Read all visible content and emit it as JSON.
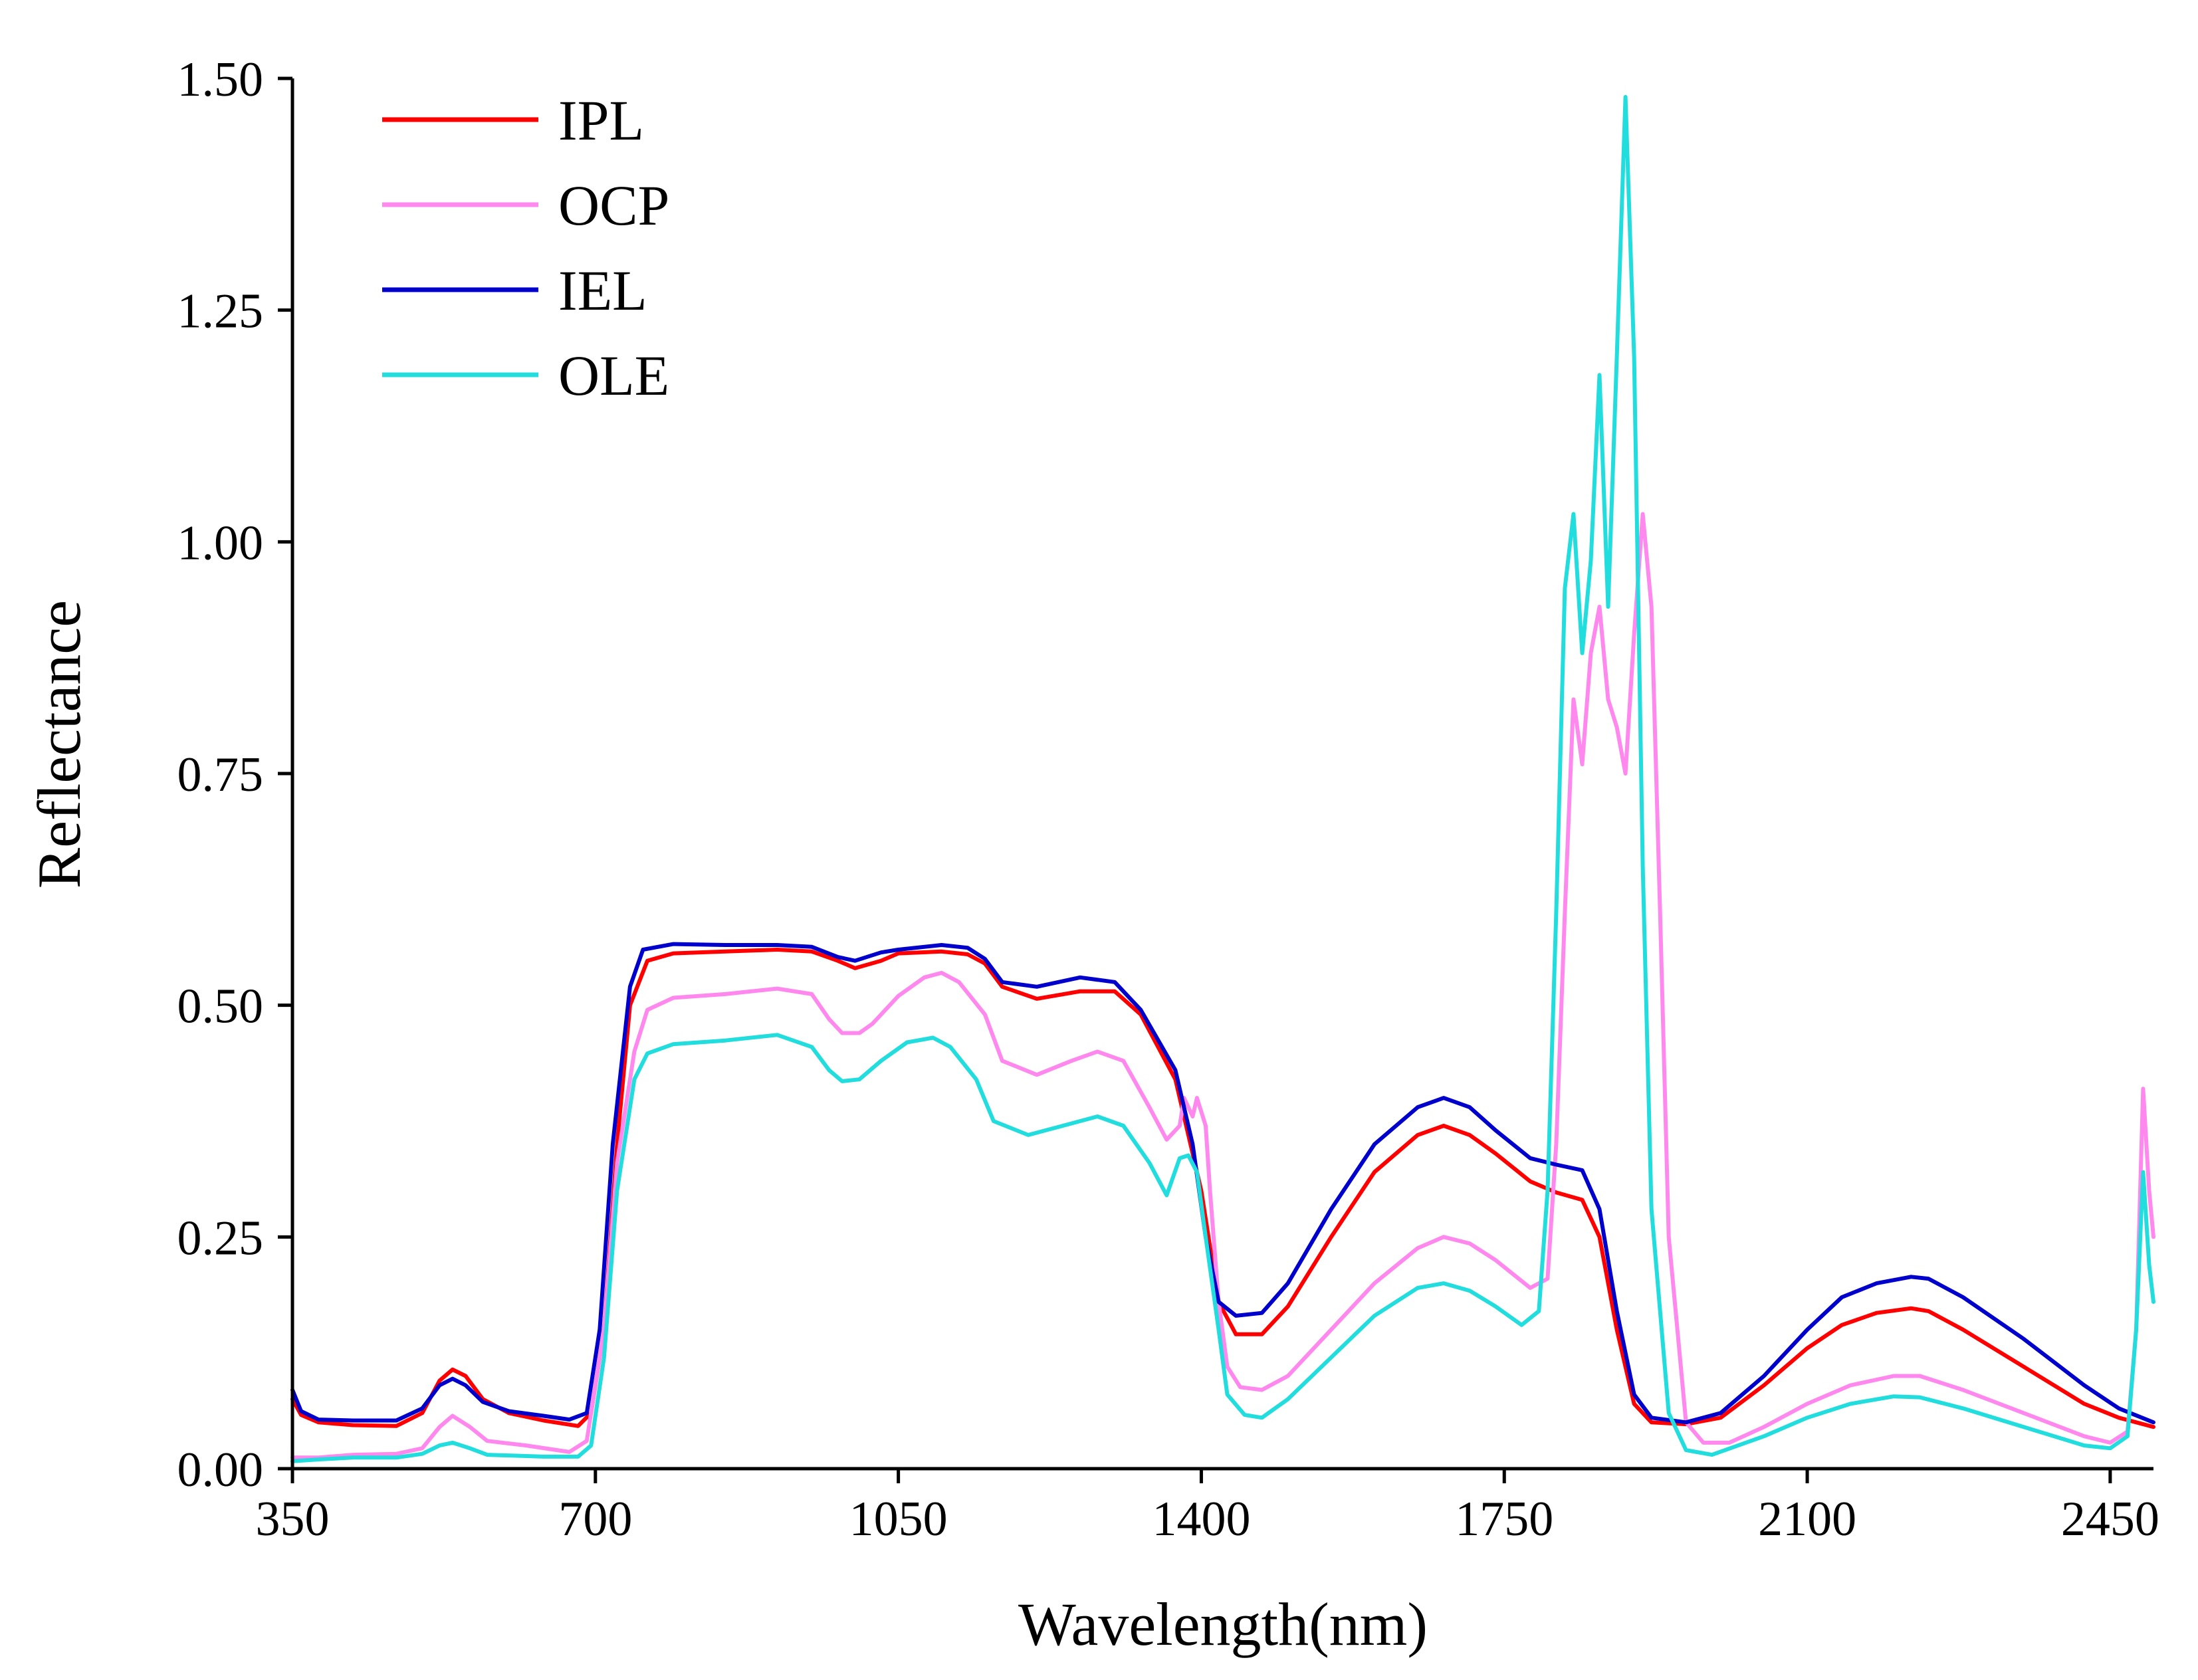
{
  "chart_data": {
    "type": "line",
    "title": "",
    "xlabel": "Wavelength(nm)",
    "ylabel": "Reflectance",
    "xlim": [
      350,
      2500
    ],
    "ylim": [
      0,
      1.5
    ],
    "xticks": [
      350,
      700,
      1050,
      1400,
      1750,
      2100,
      2450
    ],
    "xtick_labels": [
      "350",
      "700",
      "1050",
      "1400",
      "1750",
      "2100",
      "2450"
    ],
    "yticks": [
      0,
      0.25,
      0.5,
      0.75,
      1.0,
      1.25,
      1.5
    ],
    "ytick_labels": [
      "0.00",
      "0.25",
      "0.50",
      "0.75",
      "1.00",
      "1.25",
      "1.50"
    ],
    "grid": false,
    "legend_position": "top-left",
    "series": [
      {
        "name": "IPL",
        "color": "#ff0000",
        "points": [
          [
            350,
            0.075
          ],
          [
            360,
            0.058
          ],
          [
            380,
            0.05
          ],
          [
            420,
            0.047
          ],
          [
            470,
            0.046
          ],
          [
            500,
            0.06
          ],
          [
            520,
            0.095
          ],
          [
            535,
            0.107
          ],
          [
            550,
            0.1
          ],
          [
            570,
            0.075
          ],
          [
            600,
            0.06
          ],
          [
            640,
            0.052
          ],
          [
            680,
            0.046
          ],
          [
            695,
            0.06
          ],
          [
            710,
            0.15
          ],
          [
            725,
            0.35
          ],
          [
            740,
            0.5
          ],
          [
            760,
            0.548
          ],
          [
            790,
            0.556
          ],
          [
            850,
            0.558
          ],
          [
            910,
            0.56
          ],
          [
            950,
            0.558
          ],
          [
            980,
            0.548
          ],
          [
            1000,
            0.54
          ],
          [
            1030,
            0.548
          ],
          [
            1050,
            0.556
          ],
          [
            1100,
            0.558
          ],
          [
            1130,
            0.555
          ],
          [
            1150,
            0.545
          ],
          [
            1170,
            0.52
          ],
          [
            1210,
            0.507
          ],
          [
            1260,
            0.515
          ],
          [
            1300,
            0.515
          ],
          [
            1330,
            0.49
          ],
          [
            1370,
            0.42
          ],
          [
            1400,
            0.3
          ],
          [
            1420,
            0.18
          ],
          [
            1440,
            0.145
          ],
          [
            1470,
            0.145
          ],
          [
            1500,
            0.175
          ],
          [
            1550,
            0.25
          ],
          [
            1600,
            0.32
          ],
          [
            1650,
            0.36
          ],
          [
            1680,
            0.37
          ],
          [
            1710,
            0.36
          ],
          [
            1740,
            0.34
          ],
          [
            1780,
            0.31
          ],
          [
            1810,
            0.298
          ],
          [
            1840,
            0.29
          ],
          [
            1860,
            0.25
          ],
          [
            1880,
            0.15
          ],
          [
            1900,
            0.07
          ],
          [
            1920,
            0.05
          ],
          [
            1960,
            0.048
          ],
          [
            2000,
            0.055
          ],
          [
            2050,
            0.09
          ],
          [
            2100,
            0.13
          ],
          [
            2140,
            0.155
          ],
          [
            2180,
            0.168
          ],
          [
            2220,
            0.173
          ],
          [
            2240,
            0.17
          ],
          [
            2280,
            0.15
          ],
          [
            2350,
            0.11
          ],
          [
            2420,
            0.07
          ],
          [
            2460,
            0.055
          ],
          [
            2500,
            0.045
          ]
        ]
      },
      {
        "name": "OCP",
        "color": "#ff88ee",
        "points": [
          [
            350,
            0.012
          ],
          [
            380,
            0.012
          ],
          [
            420,
            0.015
          ],
          [
            470,
            0.016
          ],
          [
            500,
            0.022
          ],
          [
            520,
            0.045
          ],
          [
            535,
            0.057
          ],
          [
            555,
            0.045
          ],
          [
            575,
            0.03
          ],
          [
            620,
            0.025
          ],
          [
            670,
            0.018
          ],
          [
            690,
            0.03
          ],
          [
            710,
            0.15
          ],
          [
            725,
            0.33
          ],
          [
            745,
            0.45
          ],
          [
            760,
            0.495
          ],
          [
            790,
            0.508
          ],
          [
            850,
            0.512
          ],
          [
            910,
            0.518
          ],
          [
            950,
            0.512
          ],
          [
            970,
            0.485
          ],
          [
            985,
            0.47
          ],
          [
            1005,
            0.47
          ],
          [
            1020,
            0.48
          ],
          [
            1050,
            0.51
          ],
          [
            1080,
            0.53
          ],
          [
            1100,
            0.535
          ],
          [
            1120,
            0.525
          ],
          [
            1150,
            0.49
          ],
          [
            1170,
            0.44
          ],
          [
            1210,
            0.425
          ],
          [
            1250,
            0.44
          ],
          [
            1280,
            0.45
          ],
          [
            1310,
            0.44
          ],
          [
            1340,
            0.39
          ],
          [
            1360,
            0.355
          ],
          [
            1375,
            0.37
          ],
          [
            1380,
            0.4
          ],
          [
            1390,
            0.38
          ],
          [
            1395,
            0.4
          ],
          [
            1405,
            0.37
          ],
          [
            1410,
            0.3
          ],
          [
            1420,
            0.18
          ],
          [
            1430,
            0.11
          ],
          [
            1445,
            0.088
          ],
          [
            1470,
            0.085
          ],
          [
            1500,
            0.1
          ],
          [
            1550,
            0.15
          ],
          [
            1600,
            0.2
          ],
          [
            1650,
            0.238
          ],
          [
            1680,
            0.25
          ],
          [
            1710,
            0.243
          ],
          [
            1740,
            0.225
          ],
          [
            1780,
            0.195
          ],
          [
            1800,
            0.205
          ],
          [
            1810,
            0.35
          ],
          [
            1820,
            0.6
          ],
          [
            1830,
            0.83
          ],
          [
            1840,
            0.76
          ],
          [
            1850,
            0.88
          ],
          [
            1860,
            0.93
          ],
          [
            1870,
            0.83
          ],
          [
            1880,
            0.8
          ],
          [
            1890,
            0.75
          ],
          [
            1900,
            0.9
          ],
          [
            1910,
            1.03
          ],
          [
            1920,
            0.93
          ],
          [
            1930,
            0.6
          ],
          [
            1940,
            0.25
          ],
          [
            1960,
            0.05
          ],
          [
            1980,
            0.028
          ],
          [
            2010,
            0.028
          ],
          [
            2050,
            0.045
          ],
          [
            2100,
            0.07
          ],
          [
            2150,
            0.09
          ],
          [
            2200,
            0.1
          ],
          [
            2230,
            0.1
          ],
          [
            2280,
            0.085
          ],
          [
            2350,
            0.06
          ],
          [
            2420,
            0.035
          ],
          [
            2450,
            0.028
          ],
          [
            2470,
            0.04
          ],
          [
            2480,
            0.15
          ],
          [
            2488,
            0.41
          ],
          [
            2495,
            0.3
          ],
          [
            2500,
            0.25
          ]
        ]
      },
      {
        "name": "IEL",
        "color": "#0000cc",
        "points": [
          [
            350,
            0.085
          ],
          [
            360,
            0.062
          ],
          [
            380,
            0.053
          ],
          [
            420,
            0.052
          ],
          [
            470,
            0.052
          ],
          [
            500,
            0.065
          ],
          [
            520,
            0.09
          ],
          [
            535,
            0.097
          ],
          [
            550,
            0.09
          ],
          [
            570,
            0.072
          ],
          [
            600,
            0.062
          ],
          [
            640,
            0.057
          ],
          [
            670,
            0.053
          ],
          [
            690,
            0.06
          ],
          [
            705,
            0.15
          ],
          [
            720,
            0.35
          ],
          [
            740,
            0.52
          ],
          [
            755,
            0.56
          ],
          [
            790,
            0.566
          ],
          [
            850,
            0.565
          ],
          [
            910,
            0.565
          ],
          [
            950,
            0.563
          ],
          [
            980,
            0.552
          ],
          [
            1000,
            0.548
          ],
          [
            1030,
            0.557
          ],
          [
            1050,
            0.56
          ],
          [
            1100,
            0.565
          ],
          [
            1130,
            0.562
          ],
          [
            1150,
            0.55
          ],
          [
            1170,
            0.525
          ],
          [
            1210,
            0.52
          ],
          [
            1260,
            0.53
          ],
          [
            1300,
            0.525
          ],
          [
            1330,
            0.495
          ],
          [
            1370,
            0.43
          ],
          [
            1390,
            0.35
          ],
          [
            1405,
            0.25
          ],
          [
            1420,
            0.18
          ],
          [
            1440,
            0.165
          ],
          [
            1470,
            0.168
          ],
          [
            1500,
            0.2
          ],
          [
            1550,
            0.28
          ],
          [
            1600,
            0.35
          ],
          [
            1650,
            0.39
          ],
          [
            1680,
            0.4
          ],
          [
            1710,
            0.39
          ],
          [
            1740,
            0.365
          ],
          [
            1780,
            0.335
          ],
          [
            1810,
            0.328
          ],
          [
            1840,
            0.322
          ],
          [
            1860,
            0.28
          ],
          [
            1880,
            0.17
          ],
          [
            1900,
            0.08
          ],
          [
            1920,
            0.055
          ],
          [
            1960,
            0.05
          ],
          [
            2000,
            0.06
          ],
          [
            2050,
            0.1
          ],
          [
            2100,
            0.15
          ],
          [
            2140,
            0.185
          ],
          [
            2180,
            0.2
          ],
          [
            2220,
            0.207
          ],
          [
            2240,
            0.205
          ],
          [
            2280,
            0.185
          ],
          [
            2350,
            0.14
          ],
          [
            2420,
            0.09
          ],
          [
            2460,
            0.065
          ],
          [
            2500,
            0.05
          ]
        ]
      },
      {
        "name": "OLE",
        "color": "#22dddd",
        "points": [
          [
            350,
            0.008
          ],
          [
            380,
            0.01
          ],
          [
            420,
            0.012
          ],
          [
            470,
            0.012
          ],
          [
            500,
            0.016
          ],
          [
            520,
            0.025
          ],
          [
            535,
            0.028
          ],
          [
            555,
            0.022
          ],
          [
            575,
            0.015
          ],
          [
            640,
            0.013
          ],
          [
            680,
            0.013
          ],
          [
            695,
            0.025
          ],
          [
            710,
            0.12
          ],
          [
            725,
            0.3
          ],
          [
            745,
            0.42
          ],
          [
            760,
            0.448
          ],
          [
            790,
            0.458
          ],
          [
            850,
            0.462
          ],
          [
            910,
            0.468
          ],
          [
            950,
            0.455
          ],
          [
            970,
            0.43
          ],
          [
            985,
            0.418
          ],
          [
            1005,
            0.42
          ],
          [
            1030,
            0.44
          ],
          [
            1060,
            0.46
          ],
          [
            1090,
            0.465
          ],
          [
            1110,
            0.455
          ],
          [
            1140,
            0.42
          ],
          [
            1160,
            0.375
          ],
          [
            1200,
            0.36
          ],
          [
            1240,
            0.37
          ],
          [
            1280,
            0.38
          ],
          [
            1310,
            0.37
          ],
          [
            1340,
            0.33
          ],
          [
            1360,
            0.295
          ],
          [
            1375,
            0.335
          ],
          [
            1385,
            0.338
          ],
          [
            1395,
            0.32
          ],
          [
            1405,
            0.25
          ],
          [
            1420,
            0.15
          ],
          [
            1430,
            0.08
          ],
          [
            1450,
            0.058
          ],
          [
            1470,
            0.055
          ],
          [
            1500,
            0.075
          ],
          [
            1550,
            0.12
          ],
          [
            1600,
            0.165
          ],
          [
            1650,
            0.195
          ],
          [
            1680,
            0.2
          ],
          [
            1710,
            0.192
          ],
          [
            1740,
            0.175
          ],
          [
            1770,
            0.155
          ],
          [
            1790,
            0.17
          ],
          [
            1800,
            0.3
          ],
          [
            1810,
            0.6
          ],
          [
            1820,
            0.95
          ],
          [
            1830,
            1.03
          ],
          [
            1840,
            0.88
          ],
          [
            1850,
            0.98
          ],
          [
            1860,
            1.18
          ],
          [
            1870,
            0.93
          ],
          [
            1880,
            1.2
          ],
          [
            1890,
            1.48
          ],
          [
            1900,
            1.2
          ],
          [
            1910,
            0.65
          ],
          [
            1920,
            0.28
          ],
          [
            1940,
            0.06
          ],
          [
            1960,
            0.02
          ],
          [
            1990,
            0.015
          ],
          [
            2050,
            0.035
          ],
          [
            2100,
            0.055
          ],
          [
            2150,
            0.07
          ],
          [
            2200,
            0.078
          ],
          [
            2230,
            0.077
          ],
          [
            2280,
            0.065
          ],
          [
            2350,
            0.045
          ],
          [
            2420,
            0.025
          ],
          [
            2450,
            0.022
          ],
          [
            2470,
            0.035
          ],
          [
            2480,
            0.15
          ],
          [
            2488,
            0.32
          ],
          [
            2495,
            0.22
          ],
          [
            2500,
            0.18
          ]
        ]
      }
    ]
  }
}
